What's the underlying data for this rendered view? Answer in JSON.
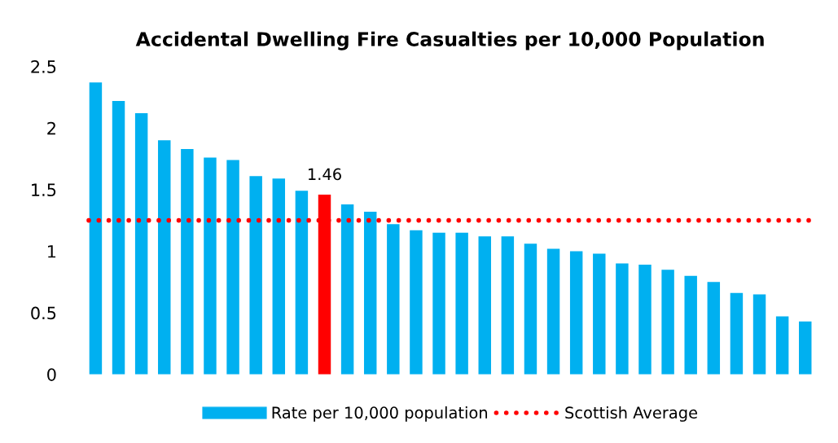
{
  "chart_data": {
    "type": "bar",
    "title": "Accidental Dwelling Fire Casualties per 10,000 Population",
    "categories": [
      null,
      null,
      null,
      null,
      null,
      null,
      null,
      null,
      null,
      null,
      null,
      null,
      null,
      null,
      null,
      null,
      null,
      null,
      null,
      null,
      null,
      null,
      null,
      null,
      null,
      null,
      null,
      null,
      null,
      null,
      null,
      null
    ],
    "series": [
      {
        "name": "Rate per 10,000 population",
        "color": "#00b0f0",
        "values": [
          2.37,
          2.22,
          2.12,
          1.9,
          1.83,
          1.76,
          1.74,
          1.61,
          1.59,
          1.49,
          1.46,
          1.38,
          1.32,
          1.22,
          1.17,
          1.15,
          1.15,
          1.12,
          1.12,
          1.06,
          1.02,
          1.0,
          0.98,
          0.9,
          0.89,
          0.85,
          0.8,
          0.75,
          0.66,
          0.65,
          0.47,
          0.43
        ],
        "colors": [
          "#00b0f0",
          "#00b0f0",
          "#00b0f0",
          "#00b0f0",
          "#00b0f0",
          "#00b0f0",
          "#00b0f0",
          "#00b0f0",
          "#00b0f0",
          "#00b0f0",
          "#ff0000",
          "#00b0f0",
          "#00b0f0",
          "#00b0f0",
          "#00b0f0",
          "#00b0f0",
          "#00b0f0",
          "#00b0f0",
          "#00b0f0",
          "#00b0f0",
          "#00b0f0",
          "#00b0f0",
          "#00b0f0",
          "#00b0f0",
          "#00b0f0",
          "#00b0f0",
          "#00b0f0",
          "#00b0f0",
          "#00b0f0",
          "#00b0f0",
          "#00b0f0",
          "#00b0f0"
        ],
        "value_labels": [
          null,
          null,
          null,
          null,
          null,
          null,
          null,
          null,
          null,
          null,
          "1.46",
          null,
          null,
          null,
          null,
          null,
          null,
          null,
          null,
          null,
          null,
          null,
          null,
          null,
          null,
          null,
          null,
          null,
          null,
          null,
          null,
          null
        ]
      }
    ],
    "ref_lines": [
      {
        "axis": "y",
        "value": 1.25,
        "label": "Scottish Average",
        "color": "#ff0000",
        "line_style": "dotted"
      }
    ],
    "ylim": [
      0,
      2.5
    ],
    "yticks": [
      0,
      0.5,
      1,
      1.5,
      2,
      2.5
    ],
    "grid": false,
    "legend": "bottom"
  }
}
